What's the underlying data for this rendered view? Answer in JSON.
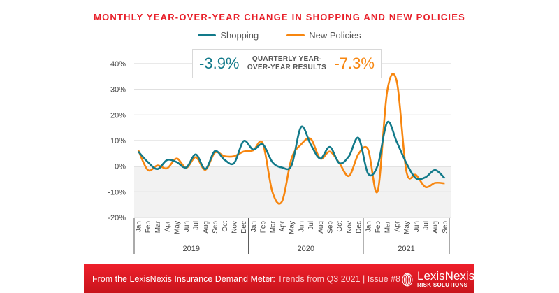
{
  "chart_data": {
    "type": "line",
    "title": "MONTHLY YEAR-OVER-YEAR CHANGE IN SHOPPING AND NEW POLICIES",
    "x": [
      "Jan",
      "Feb",
      "Mar",
      "Apr",
      "May",
      "Jun",
      "Jul",
      "Aug",
      "Sep",
      "Oct",
      "Nov",
      "Dec",
      "Jan",
      "Feb",
      "Mar",
      "Apr",
      "May",
      "Jun",
      "Jul",
      "Aug",
      "Sep",
      "Oct",
      "Nov",
      "Dec",
      "Jan",
      "Feb",
      "Mar",
      "Apr",
      "May",
      "Jun",
      "Jul",
      "Aug",
      "Sep"
    ],
    "years": [
      {
        "label": "2019",
        "months": 12
      },
      {
        "label": "2020",
        "months": 12
      },
      {
        "label": "2021",
        "months": 9
      }
    ],
    "ylim": [
      -20,
      40
    ],
    "yticks": [
      -20,
      -10,
      0,
      10,
      20,
      30,
      40
    ],
    "ytick_labels": [
      "-20%",
      "-10%",
      "0%",
      "10%",
      "20%",
      "30%",
      "40%"
    ],
    "grid": true,
    "legend_placement": "top-center",
    "series": [
      {
        "name": "Shopping",
        "color": "#127a8a",
        "values": [
          5.7,
          1.6,
          -1.1,
          2.4,
          1.6,
          -0.5,
          4.6,
          -1.1,
          5.9,
          2.5,
          1.2,
          9.8,
          6.5,
          8.5,
          1.6,
          -0.5,
          0.3,
          15.3,
          8.5,
          3.0,
          7.5,
          1.2,
          3.9,
          11.0,
          -2.9,
          0.3,
          17.1,
          9.4,
          1.2,
          -4.7,
          -4.3,
          -1.5,
          -4.7
        ]
      },
      {
        "name": "New Policies",
        "color": "#f7860f",
        "values": [
          6.2,
          -1.5,
          0.3,
          -0.8,
          3.0,
          -0.6,
          3.5,
          -1.4,
          5.3,
          3.9,
          3.9,
          5.7,
          6.2,
          8.9,
          -10.0,
          -13.8,
          3.0,
          8.5,
          10.7,
          3.0,
          5.7,
          1.2,
          -3.8,
          4.8,
          6.5,
          -9.7,
          29.4,
          33.0,
          -2.0,
          -3.4,
          -8.1,
          -6.5,
          -6.7
        ]
      }
    ]
  },
  "quarterly": {
    "shopping": "-3.9%",
    "label_line1": "QUARTERLY YEAR-",
    "label_line2": "OVER-YEAR RESULTS",
    "new_policies": "-7.3%"
  },
  "footer": {
    "bold": "From the LexisNexis Insurance Demand Meter:",
    "light": "Trends from Q3 2021",
    "sep": "|",
    "issue": "Issue #8"
  },
  "logo": {
    "name": "LexisNexis",
    "sub": "RISK SOLUTIONS"
  },
  "colors": {
    "title": "#e8202a",
    "footer": "#e11d26",
    "negative_fill": "#f2f2f2"
  }
}
